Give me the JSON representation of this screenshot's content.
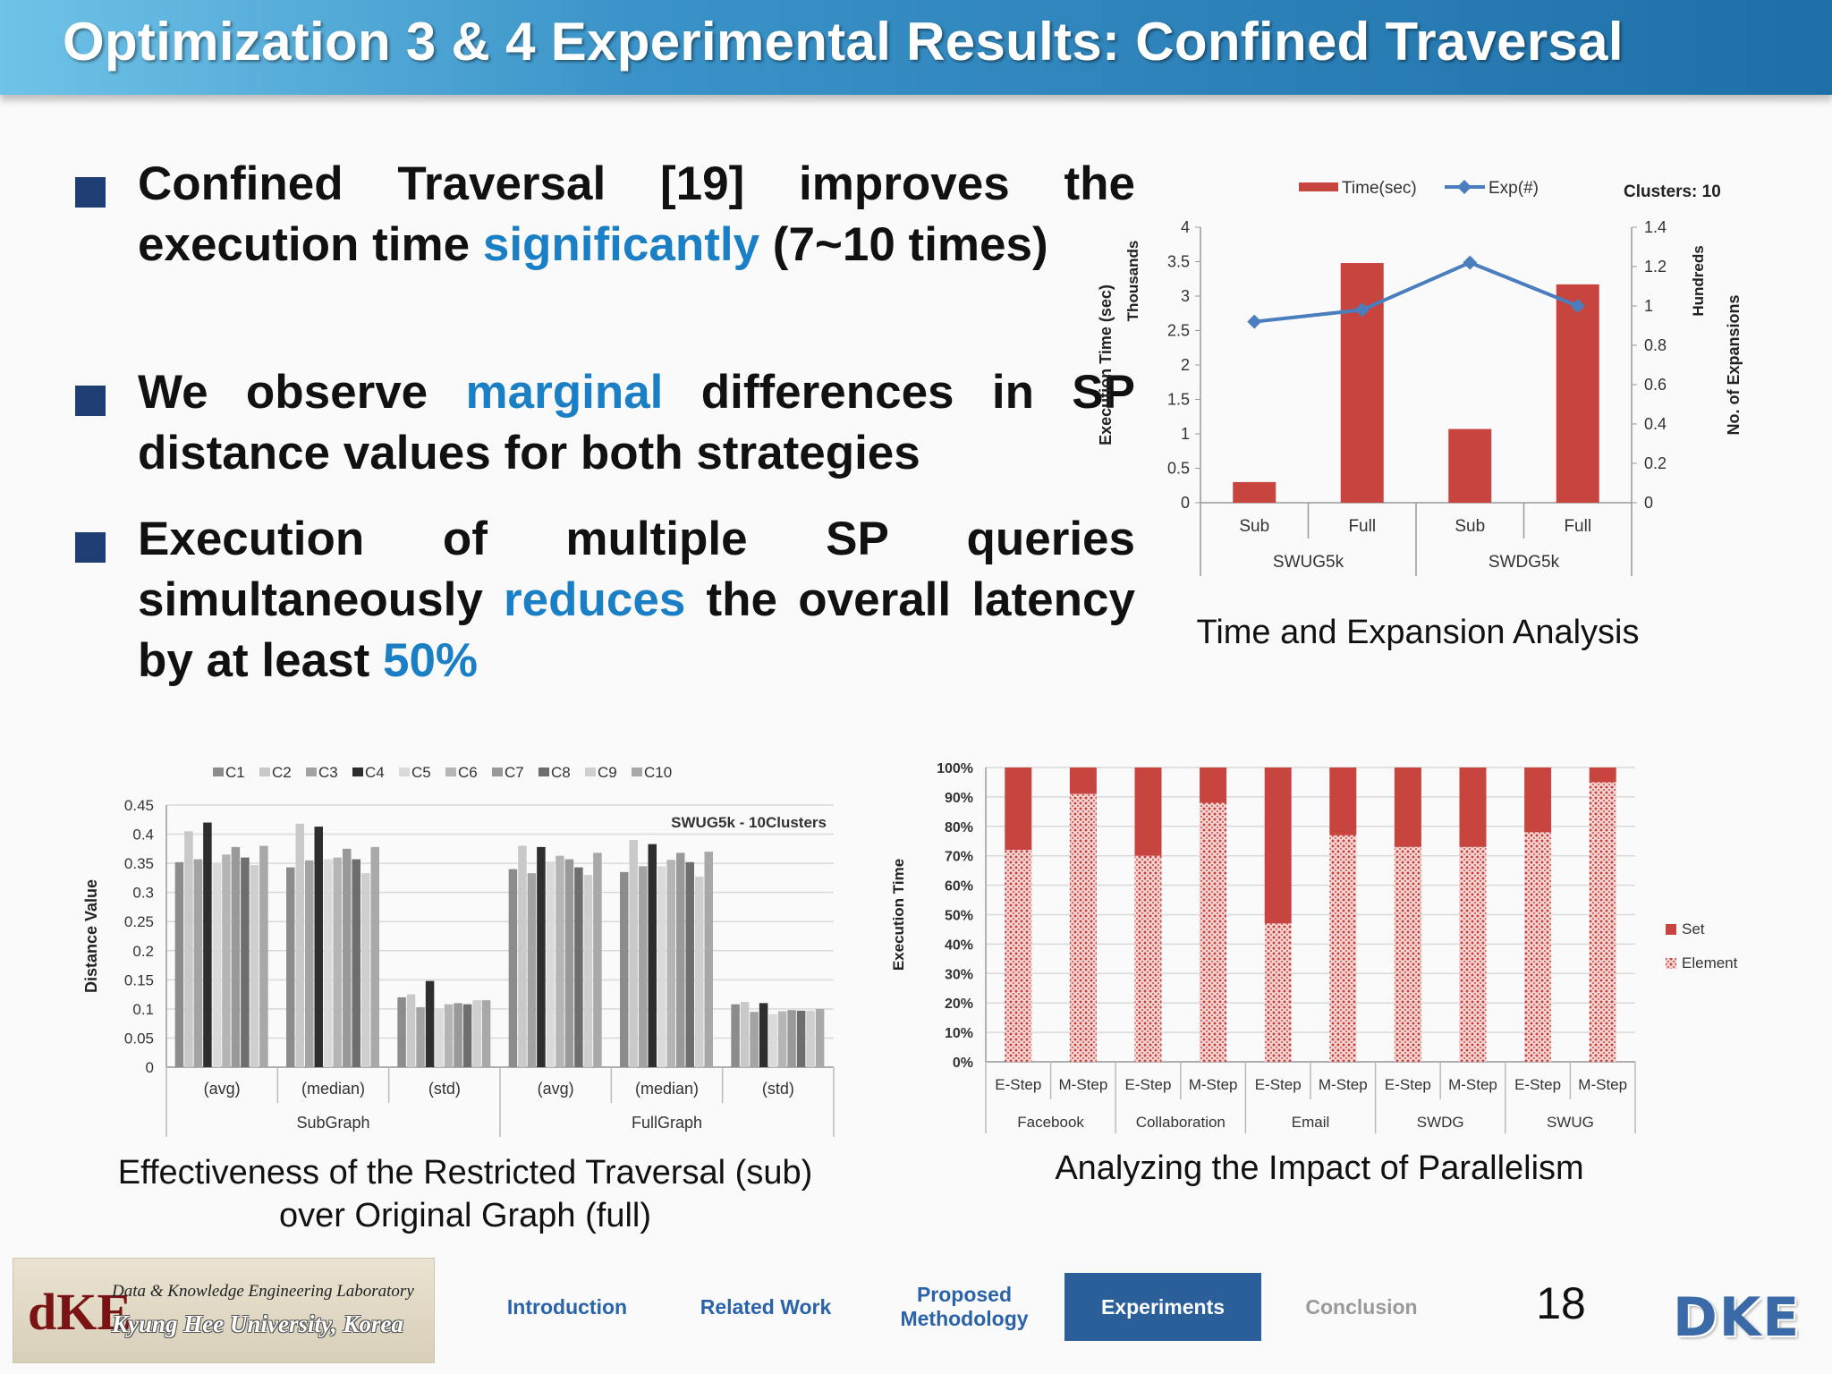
{
  "slide": {
    "title": "Optimization 3 & 4 Experimental Results: Confined Traversal",
    "page_number": "18"
  },
  "bullets": [
    {
      "parts": [
        "Confined Traversal [19] improves the execution time ",
        "significantly",
        " (7~10 times)"
      ]
    },
    {
      "parts": [
        "We observe ",
        "marginal",
        " differences in SP distance values for both strategies"
      ]
    },
    {
      "parts": [
        "Execution of multiple SP queries simultaneously ",
        "reduces",
        " the overall latency by at least ",
        "50%"
      ]
    }
  ],
  "captions": {
    "chart1": "Time and Expansion Analysis",
    "chart2_line1": "Effectiveness of the Restricted Traversal (sub)",
    "chart2_line2": "over Original Graph (full)",
    "chart3": "Analyzing the Impact of Parallelism"
  },
  "footer": {
    "lab_line1": "Data & Knowledge Engineering Laboratory",
    "lab_line2": "Kyung Hee University, Korea",
    "logo_left": "dKE",
    "logo_right": "DKE",
    "nav": [
      {
        "label": "Introduction",
        "state": "normal"
      },
      {
        "label": "Related Work",
        "state": "normal"
      },
      {
        "label": "Proposed Methodology",
        "state": "normal"
      },
      {
        "label": "Experiments",
        "state": "active"
      },
      {
        "label": "Conclusion",
        "state": "dim"
      }
    ]
  },
  "colors": {
    "bar_red": "#c8443f",
    "line_blue": "#4a7ebf",
    "active_nav": "#2a5f99",
    "highlight": "#1a7fc4"
  },
  "chart_data": [
    {
      "type": "bar",
      "combo": "bar+line",
      "legend_position": "top",
      "top_label": "Clusters: 10",
      "groups": [
        {
          "label": "SWUG5k",
          "categories": [
            "Sub",
            "Full"
          ]
        },
        {
          "label": "SWDG5k",
          "categories": [
            "Sub",
            "Full"
          ]
        }
      ],
      "categories": [
        "Sub",
        "Full",
        "Sub",
        "Full"
      ],
      "series": [
        {
          "name": "Time(sec)",
          "type": "bar",
          "axis": "left",
          "values": [
            0.3,
            3.48,
            1.07,
            3.17
          ]
        },
        {
          "name": "Exp(#)",
          "type": "line",
          "axis": "right",
          "values": [
            0.92,
            0.98,
            1.22,
            1.0
          ]
        }
      ],
      "ylabel": "Execution Time (sec)",
      "ylabel_unit": "Thousands",
      "ylim": [
        0,
        4
      ],
      "yticks": [
        "0",
        "0.5",
        "1",
        "1.5",
        "2",
        "2.5",
        "3",
        "3.5",
        "4"
      ],
      "y2label": "No. of Expansions",
      "y2label_unit": "Hundreds",
      "y2lim": [
        0,
        1.4
      ],
      "y2ticks": [
        "0",
        "0.2",
        "0.4",
        "0.6",
        "0.8",
        "1",
        "1.2",
        "1.4"
      ]
    },
    {
      "type": "bar",
      "annotation": "SWUG5k - 10Clusters",
      "legend_position": "top",
      "groups": [
        {
          "label": "SubGraph",
          "categories": [
            "(avg)",
            "(median)",
            "(std)"
          ]
        },
        {
          "label": "FullGraph",
          "categories": [
            "(avg)",
            "(median)",
            "(std)"
          ]
        }
      ],
      "categories": [
        "(avg)",
        "(median)",
        "(std)",
        "(avg)",
        "(median)",
        "(std)"
      ],
      "series": [
        {
          "name": "C1",
          "color": "#8c8c8c",
          "values": [
            0.352,
            0.343,
            0.12,
            0.34,
            0.335,
            0.108
          ]
        },
        {
          "name": "C2",
          "color": "#c9c9c9",
          "values": [
            0.405,
            0.418,
            0.125,
            0.38,
            0.39,
            0.112
          ]
        },
        {
          "name": "C3",
          "color": "#a3a3a3",
          "values": [
            0.357,
            0.355,
            0.103,
            0.333,
            0.345,
            0.095
          ]
        },
        {
          "name": "C4",
          "color": "#2e2e2e",
          "values": [
            0.42,
            0.413,
            0.148,
            0.378,
            0.383,
            0.11
          ]
        },
        {
          "name": "C5",
          "color": "#dadada",
          "values": [
            0.35,
            0.357,
            0.101,
            0.353,
            0.345,
            0.091
          ]
        },
        {
          "name": "C6",
          "color": "#b5b5b5",
          "values": [
            0.365,
            0.36,
            0.108,
            0.363,
            0.356,
            0.096
          ]
        },
        {
          "name": "C7",
          "color": "#999999",
          "values": [
            0.378,
            0.375,
            0.11,
            0.357,
            0.368,
            0.098
          ]
        },
        {
          "name": "C8",
          "color": "#6e6e6e",
          "values": [
            0.36,
            0.357,
            0.108,
            0.343,
            0.352,
            0.097
          ]
        },
        {
          "name": "C9",
          "color": "#cfcfcf",
          "values": [
            0.347,
            0.333,
            0.115,
            0.33,
            0.327,
            0.097
          ]
        },
        {
          "name": "C10",
          "color": "#a8a8a8",
          "values": [
            0.38,
            0.378,
            0.115,
            0.368,
            0.37,
            0.1
          ]
        }
      ],
      "ylabel": "Distance Value",
      "ylim": [
        0,
        0.45
      ],
      "yticks": [
        "0",
        "0.05",
        "0.1",
        "0.15",
        "0.2",
        "0.25",
        "0.3",
        "0.35",
        "0.4",
        "0.45"
      ]
    },
    {
      "type": "bar",
      "stacked": "100%",
      "legend_position": "right",
      "groups": [
        {
          "label": "Facebook",
          "categories": [
            "E-Step",
            "M-Step"
          ]
        },
        {
          "label": "Collaboration",
          "categories": [
            "E-Step",
            "M-Step"
          ]
        },
        {
          "label": "Email",
          "categories": [
            "E-Step",
            "M-Step"
          ]
        },
        {
          "label": "SWDG",
          "categories": [
            "E-Step",
            "M-Step"
          ]
        },
        {
          "label": "SWUG",
          "categories": [
            "E-Step",
            "M-Step"
          ]
        }
      ],
      "categories": [
        "E-Step",
        "M-Step",
        "E-Step",
        "M-Step",
        "E-Step",
        "M-Step",
        "E-Step",
        "M-Step",
        "E-Step",
        "M-Step"
      ],
      "series": [
        {
          "name": "Element",
          "pattern": "dotted",
          "values": [
            72,
            91,
            70,
            88,
            47,
            77,
            73,
            73,
            78,
            95
          ]
        },
        {
          "name": "Set",
          "pattern": "solid",
          "values": [
            28,
            9,
            30,
            12,
            53,
            23,
            27,
            27,
            22,
            5
          ]
        }
      ],
      "ylabel": "Execution Time",
      "ylim": [
        0,
        100
      ],
      "yticks": [
        "0%",
        "10%",
        "20%",
        "30%",
        "40%",
        "50%",
        "60%",
        "70%",
        "80%",
        "90%",
        "100%"
      ]
    }
  ]
}
